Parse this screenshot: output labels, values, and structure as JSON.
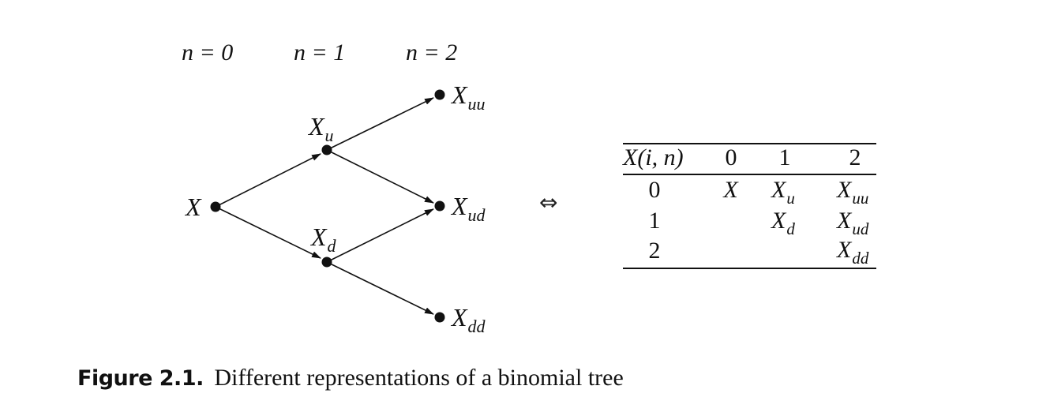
{
  "diagram": {
    "stages": [
      "n = 0",
      "n = 1",
      "n = 2"
    ],
    "nodes": {
      "root": {
        "base": "X",
        "sub": ""
      },
      "u": {
        "base": "X",
        "sub": "u"
      },
      "d": {
        "base": "X",
        "sub": "d"
      },
      "uu": {
        "base": "X",
        "sub": "uu"
      },
      "ud": {
        "base": "X",
        "sub": "ud"
      },
      "dd": {
        "base": "X",
        "sub": "dd"
      }
    },
    "equivalence_symbol": "⇔"
  },
  "table": {
    "header": [
      "X(i, n)",
      "0",
      "1",
      "2"
    ],
    "rows": [
      {
        "i": "0",
        "c0": {
          "base": "X",
          "sub": ""
        },
        "c1": {
          "base": "X",
          "sub": "u"
        },
        "c2": {
          "base": "X",
          "sub": "uu"
        }
      },
      {
        "i": "1",
        "c0": {
          "base": "",
          "sub": ""
        },
        "c1": {
          "base": "X",
          "sub": "d"
        },
        "c2": {
          "base": "X",
          "sub": "ud"
        }
      },
      {
        "i": "2",
        "c0": {
          "base": "",
          "sub": ""
        },
        "c1": {
          "base": "",
          "sub": ""
        },
        "c2": {
          "base": "X",
          "sub": "dd"
        }
      }
    ]
  },
  "caption": {
    "label": "Figure 2.1.",
    "text": "Different representations of a binomial tree"
  },
  "colors": {
    "ink": "#111111",
    "background": "#ffffff"
  }
}
